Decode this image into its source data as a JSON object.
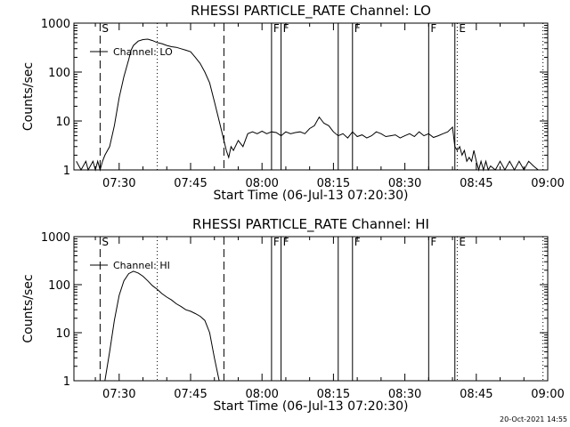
{
  "footer": {
    "timestamp": "20-Oct-2021 14:55"
  },
  "chart_data": [
    {
      "type": "line",
      "title": "RHESSI PARTICLE_RATE Channel: LO",
      "xlabel": "Start Time (06-Jul-13 07:20:30)",
      "ylabel": "Counts/sec",
      "yscale": "log",
      "ylim": [
        1,
        1000
      ],
      "xlim": [
        "07:20:30",
        "09:00:00"
      ],
      "x_ticks": [
        "07:30",
        "07:45",
        "08:00",
        "08:15",
        "08:30",
        "08:45",
        "09:00"
      ],
      "y_ticks": [
        "1",
        "10",
        "100",
        "1000"
      ],
      "legend": {
        "label": "Channel: LO",
        "position": "top-left"
      },
      "markers": [
        {
          "label": "S",
          "time": "07:26:00",
          "style": "dashed"
        },
        {
          "label": "",
          "time": "07:38:00",
          "style": "dotted"
        },
        {
          "label": "",
          "time": "07:52:00",
          "style": "dashed"
        },
        {
          "label": "F",
          "time": "08:02:00",
          "style": "solid"
        },
        {
          "label": "F",
          "time": "08:04:00",
          "style": "solid"
        },
        {
          "label": "",
          "time": "08:16:00",
          "style": "solid"
        },
        {
          "label": "F",
          "time": "08:19:00",
          "style": "solid"
        },
        {
          "label": "F",
          "time": "08:35:00",
          "style": "solid"
        },
        {
          "label": "",
          "time": "08:40:30",
          "style": "solid"
        },
        {
          "label": "E",
          "time": "08:41:00",
          "style": "dotted"
        },
        {
          "label": "",
          "time": "08:59:00",
          "style": "dotted"
        }
      ],
      "series": [
        {
          "x": [
            "07:21:00",
            "07:22:00",
            "07:23:00",
            "07:23:30",
            "07:24:30",
            "07:25:00",
            "07:25:30",
            "07:26:00",
            "07:26:30",
            "07:27:00",
            "07:28:00",
            "07:29:00",
            "07:30:00",
            "07:31:00",
            "07:32:00",
            "07:32:30",
            "07:33:00",
            "07:34:00",
            "07:35:00",
            "07:36:00",
            "07:37:00",
            "07:38:00",
            "07:39:00",
            "07:40:00",
            "07:41:00",
            "07:42:00",
            "07:43:00",
            "07:44:00",
            "07:45:00",
            "07:46:00",
            "07:47:00",
            "07:48:00",
            "07:49:00",
            "07:50:00",
            "07:51:00",
            "07:52:00",
            "07:52:30",
            "07:53:00",
            "07:53:30",
            "07:54:00",
            "07:55:00",
            "07:56:00",
            "07:57:00",
            "07:58:00",
            "07:59:00",
            "08:00:00",
            "08:01:00",
            "08:02:00",
            "08:03:00",
            "08:04:00",
            "08:05:00",
            "08:06:00",
            "08:07:00",
            "08:08:00",
            "08:09:00",
            "08:10:00",
            "08:11:00",
            "08:12:00",
            "08:13:00",
            "08:14:00",
            "08:15:00",
            "08:16:00",
            "08:17:00",
            "08:18:00",
            "08:19:00",
            "08:20:00",
            "08:21:00",
            "08:22:00",
            "08:23:00",
            "08:24:00",
            "08:25:00",
            "08:26:00",
            "08:27:00",
            "08:28:00",
            "08:29:00",
            "08:30:00",
            "08:31:00",
            "08:32:00",
            "08:33:00",
            "08:34:00",
            "08:35:00",
            "08:36:00",
            "08:37:00",
            "08:38:00",
            "08:39:00",
            "08:40:00",
            "08:40:30",
            "08:41:00",
            "08:41:30",
            "08:42:00",
            "08:42:30",
            "08:43:00",
            "08:43:30",
            "08:44:00",
            "08:44:30",
            "08:45:00",
            "08:45:30",
            "08:46:00",
            "08:46:30",
            "08:47:00",
            "08:47:30",
            "08:48:00",
            "08:49:00",
            "08:50:00",
            "08:51:00",
            "08:52:00",
            "08:53:00",
            "08:54:00",
            "08:55:00",
            "08:56:00",
            "08:57:00",
            "08:58:00"
          ],
          "y": [
            1.5,
            1,
            1.5,
            1,
            1.5,
            1,
            1.5,
            1,
            1.5,
            2,
            3,
            8,
            30,
            80,
            180,
            280,
            350,
            430,
            460,
            470,
            440,
            400,
            380,
            350,
            330,
            320,
            300,
            280,
            260,
            200,
            150,
            100,
            60,
            25,
            10,
            4,
            2.5,
            1.8,
            3,
            2.5,
            4,
            3,
            5.5,
            6,
            5.5,
            6.2,
            5.5,
            6,
            5.8,
            5,
            6,
            5.5,
            5.8,
            6,
            5.5,
            7,
            8,
            12,
            9,
            8,
            6,
            5,
            5.5,
            4.5,
            6,
            4.8,
            5.2,
            4.5,
            5,
            6,
            5.5,
            4.8,
            5,
            5.2,
            4.5,
            5,
            5.5,
            4.8,
            6,
            5,
            5.5,
            4.6,
            5,
            5.5,
            6,
            7.5,
            3,
            2.5,
            3,
            2,
            2.5,
            1.5,
            1.8,
            1.5,
            2.5,
            1.5,
            1,
            1.5,
            1,
            1.5,
            1,
            1.2,
            1,
            1.5,
            1,
            1.5,
            1,
            1.5,
            1,
            1.5,
            1.2,
            1
          ]
        }
      ]
    },
    {
      "type": "line",
      "title": "RHESSI PARTICLE_RATE Channel: HI",
      "xlabel": "Start Time (06-Jul-13 07:20:30)",
      "ylabel": "Counts/sec",
      "yscale": "log",
      "ylim": [
        1,
        1000
      ],
      "xlim": [
        "07:20:30",
        "09:00:00"
      ],
      "x_ticks": [
        "07:30",
        "07:45",
        "08:00",
        "08:15",
        "08:30",
        "08:45",
        "09:00"
      ],
      "y_ticks": [
        "1",
        "10",
        "100",
        "1000"
      ],
      "legend": {
        "label": "Channel: HI",
        "position": "top-left"
      },
      "markers": [
        {
          "label": "S",
          "time": "07:26:00",
          "style": "dashed"
        },
        {
          "label": "",
          "time": "07:38:00",
          "style": "dotted"
        },
        {
          "label": "",
          "time": "07:52:00",
          "style": "dashed"
        },
        {
          "label": "F",
          "time": "08:02:00",
          "style": "solid"
        },
        {
          "label": "F",
          "time": "08:04:00",
          "style": "solid"
        },
        {
          "label": "",
          "time": "08:16:00",
          "style": "solid"
        },
        {
          "label": "F",
          "time": "08:19:00",
          "style": "solid"
        },
        {
          "label": "F",
          "time": "08:35:00",
          "style": "solid"
        },
        {
          "label": "",
          "time": "08:40:30",
          "style": "solid"
        },
        {
          "label": "E",
          "time": "08:41:00",
          "style": "dotted"
        },
        {
          "label": "",
          "time": "08:59:00",
          "style": "dotted"
        }
      ],
      "series": [
        {
          "x": [
            "07:27:00",
            "07:28:00",
            "07:29:00",
            "07:30:00",
            "07:31:00",
            "07:32:00",
            "07:33:00",
            "07:34:00",
            "07:35:00",
            "07:36:00",
            "07:37:00",
            "07:38:00",
            "07:39:00",
            "07:40:00",
            "07:41:00",
            "07:42:00",
            "07:43:00",
            "07:44:00",
            "07:45:00",
            "07:46:00",
            "07:47:00",
            "07:48:00",
            "07:49:00",
            "07:50:00",
            "07:51:00"
          ],
          "y": [
            1,
            4,
            18,
            60,
            120,
            170,
            190,
            175,
            150,
            120,
            95,
            80,
            65,
            55,
            48,
            40,
            35,
            30,
            28,
            25,
            22,
            18,
            10,
            3,
            1
          ]
        }
      ]
    }
  ]
}
